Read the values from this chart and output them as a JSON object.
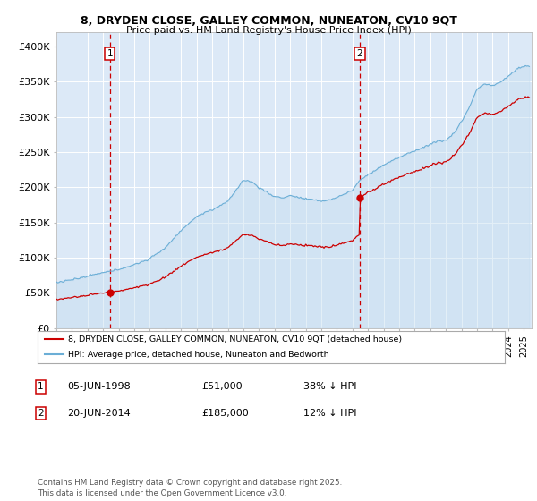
{
  "title_line1": "8, DRYDEN CLOSE, GALLEY COMMON, NUNEATON, CV10 9QT",
  "title_line2": "Price paid vs. HM Land Registry's House Price Index (HPI)",
  "ylim": [
    0,
    420000
  ],
  "xlim_start": 1995.0,
  "xlim_end": 2025.5,
  "background_color": "#dce9f7",
  "grid_color": "#ffffff",
  "hpi_color": "#6baed6",
  "hpi_fill_color": "#c5ddf0",
  "price_color": "#cc0000",
  "marker1_date": 1998.43,
  "marker1_price": 51000,
  "marker2_date": 2014.47,
  "marker2_price": 185000,
  "legend_label1": "8, DRYDEN CLOSE, GALLEY COMMON, NUNEATON, CV10 9QT (detached house)",
  "legend_label2": "HPI: Average price, detached house, Nuneaton and Bedworth",
  "note1_label": "1",
  "note1_date": "05-JUN-1998",
  "note1_price": "£51,000",
  "note1_hpi": "38% ↓ HPI",
  "note2_label": "2",
  "note2_date": "20-JUN-2014",
  "note2_price": "£185,000",
  "note2_hpi": "12% ↓ HPI",
  "footer": "Contains HM Land Registry data © Crown copyright and database right 2025.\nThis data is licensed under the Open Government Licence v3.0.",
  "yticks": [
    0,
    50000,
    100000,
    150000,
    200000,
    250000,
    300000,
    350000,
    400000
  ],
  "ytick_labels": [
    "£0",
    "£50K",
    "£100K",
    "£150K",
    "£200K",
    "£250K",
    "£300K",
    "£350K",
    "£400K"
  ],
  "hpi_keypoints_x": [
    1995.0,
    1996.0,
    1997.0,
    1998.0,
    1999.0,
    2000.0,
    2001.0,
    2002.0,
    2003.0,
    2004.0,
    2005.0,
    2006.0,
    2007.0,
    2007.5,
    2008.0,
    2008.5,
    2009.0,
    2009.5,
    2010.0,
    2010.5,
    2011.0,
    2011.5,
    2012.0,
    2012.5,
    2013.0,
    2013.5,
    2014.0,
    2014.47,
    2015.0,
    2015.5,
    2016.0,
    2016.5,
    2017.0,
    2017.5,
    2018.0,
    2018.5,
    2019.0,
    2019.5,
    2020.0,
    2020.5,
    2021.0,
    2021.5,
    2022.0,
    2022.5,
    2023.0,
    2023.5,
    2024.0,
    2024.5,
    2025.0
  ],
  "hpi_keypoints_y": [
    65000,
    68000,
    72000,
    78000,
    84000,
    90000,
    99000,
    115000,
    138000,
    158000,
    168000,
    180000,
    210000,
    208000,
    200000,
    193000,
    186000,
    184000,
    188000,
    185000,
    183000,
    181000,
    180000,
    182000,
    185000,
    190000,
    195000,
    210000,
    218000,
    225000,
    232000,
    238000,
    243000,
    248000,
    253000,
    258000,
    263000,
    268000,
    268000,
    278000,
    295000,
    315000,
    340000,
    348000,
    345000,
    350000,
    358000,
    368000,
    372000
  ]
}
